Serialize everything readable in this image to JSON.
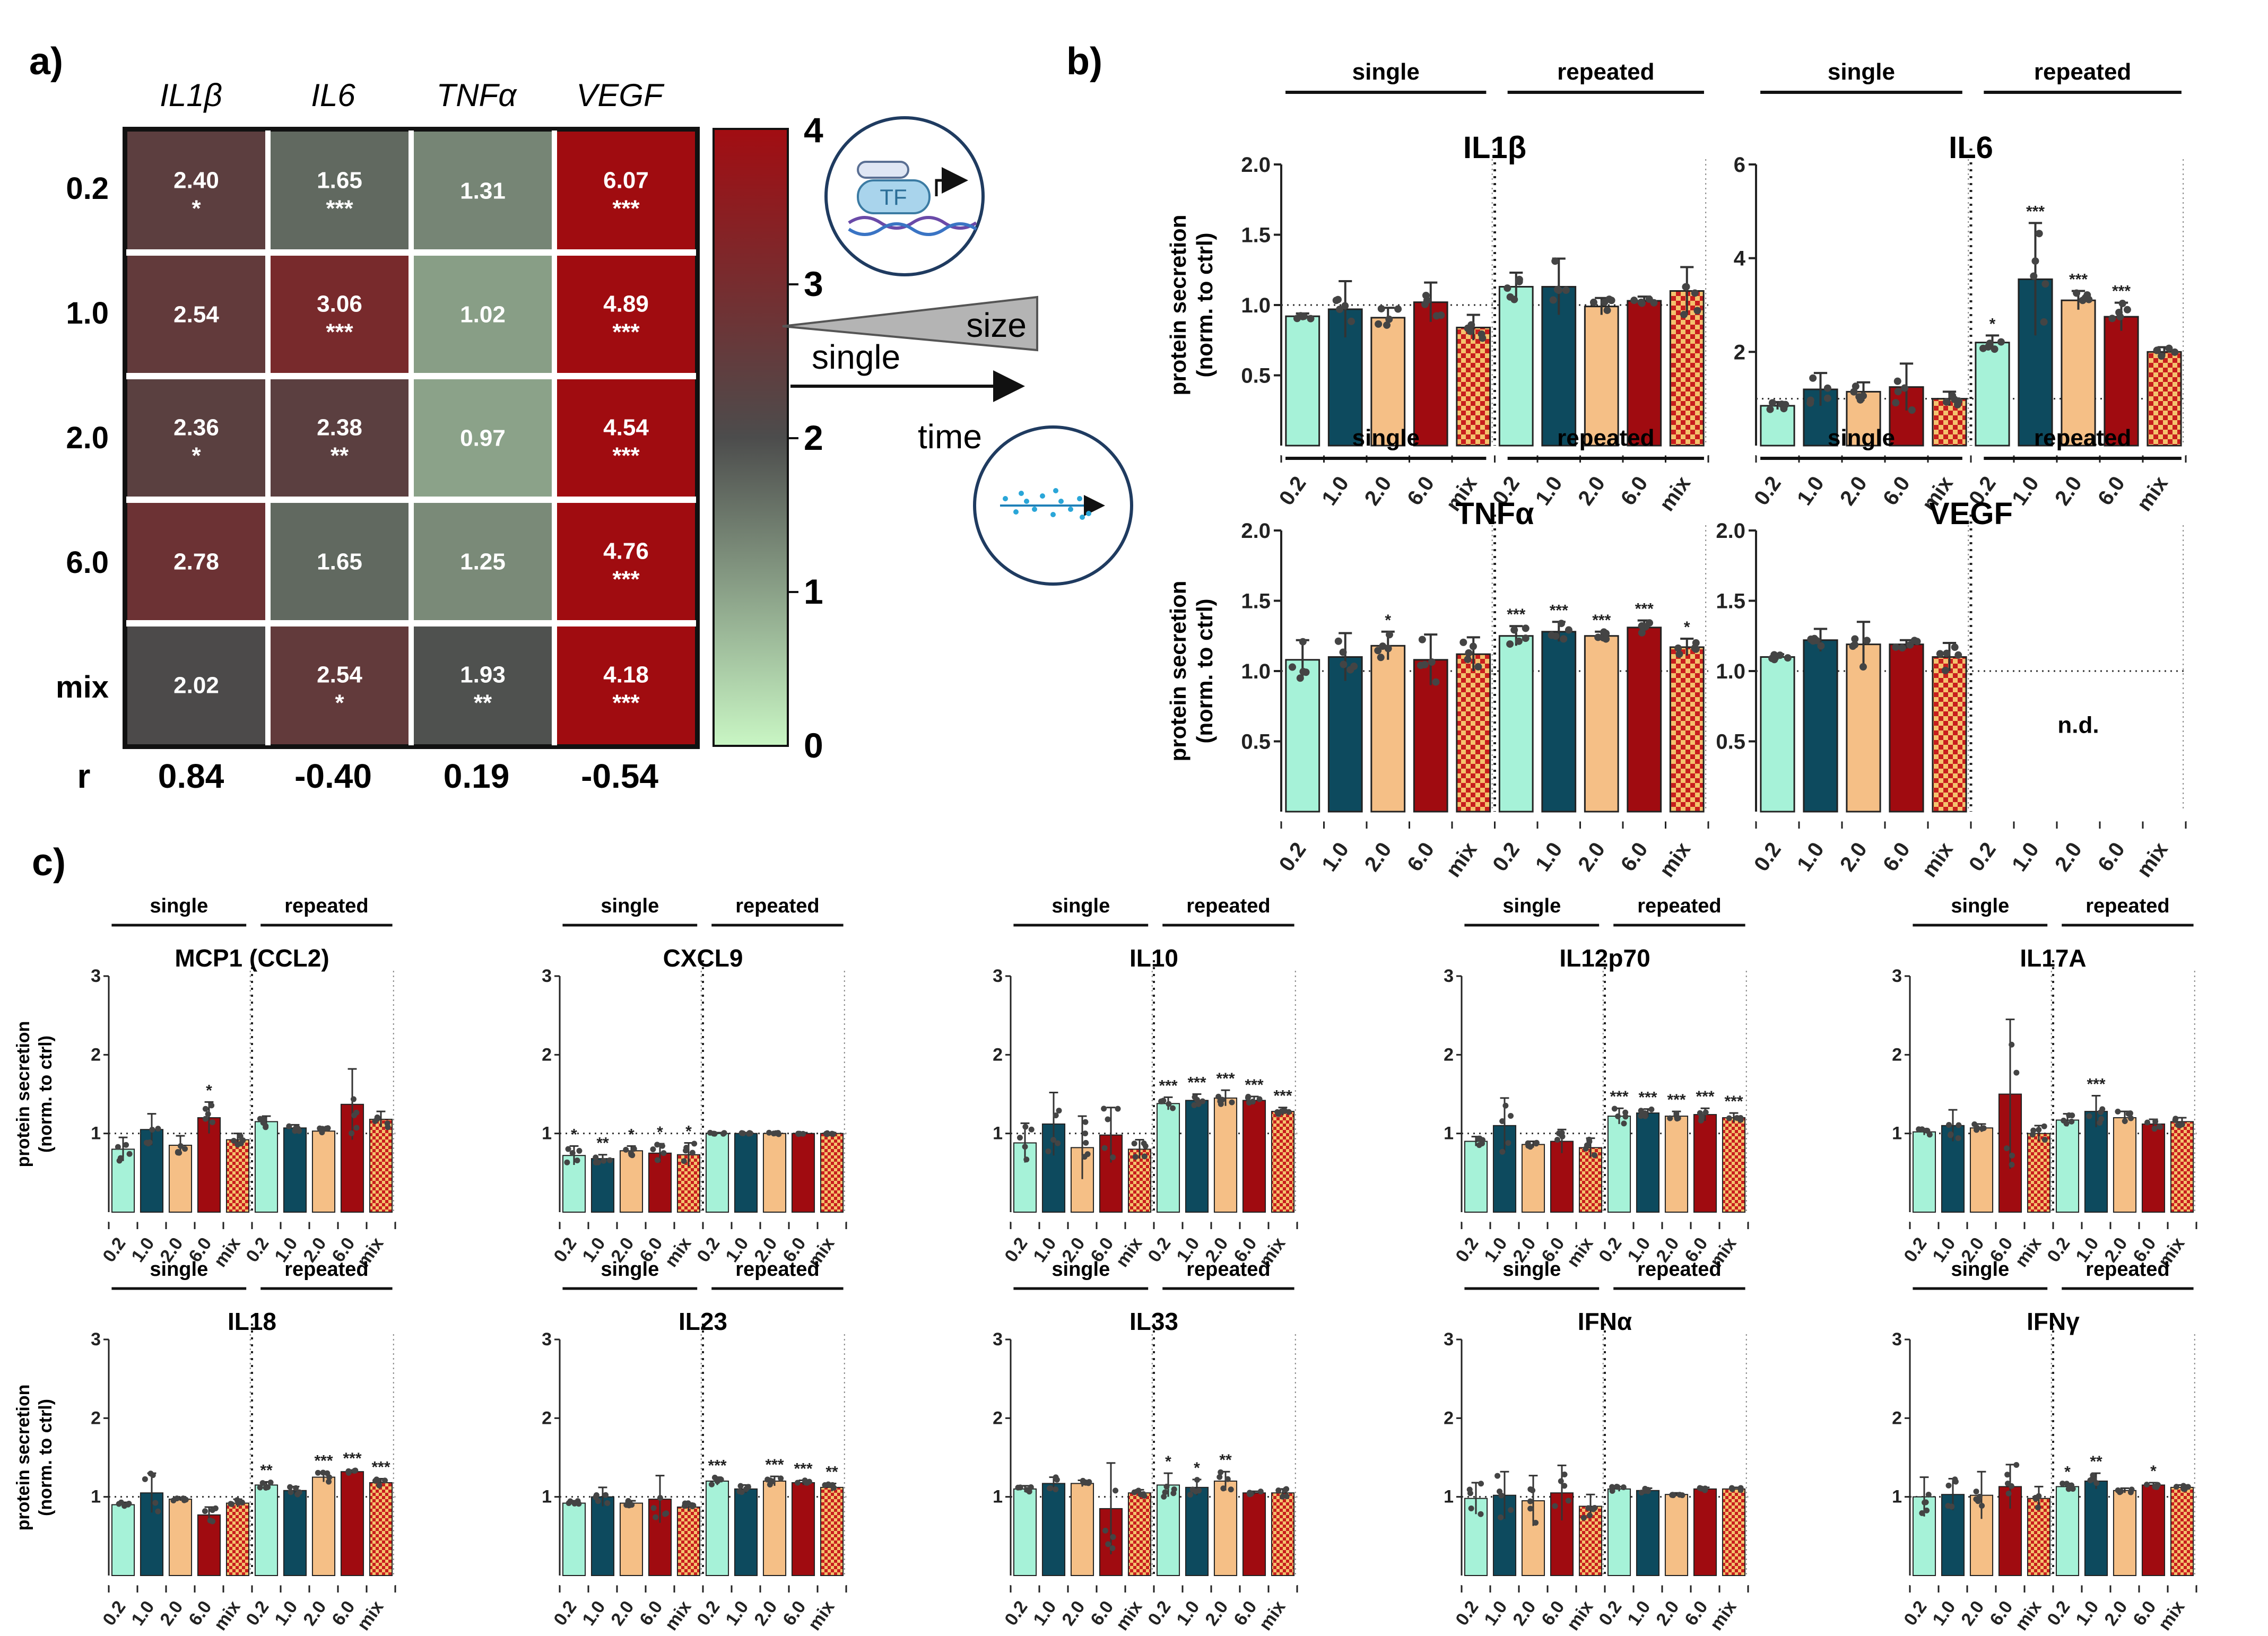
{
  "panels": {
    "a": "a)",
    "b": "b)",
    "c": "c)"
  },
  "colors": {
    "c0_2": "#a6f2d8",
    "c1_0": "#0d4a5e",
    "c2_0": "#f5bf86",
    "c6_0": "#a00b10",
    "cmix": "#cc2222",
    "cmix2": "#f4c06a",
    "hm_low": "#c8f4c4",
    "hm_mid": "#4b4b4b",
    "hm_high": "#a00c10"
  },
  "heatmap": {
    "columns": [
      "IL1β",
      "IL6",
      "TNFα",
      "VEGF"
    ],
    "rows": [
      "0.2",
      "1.0",
      "2.0",
      "6.0",
      "mix"
    ],
    "values": [
      [
        "2.40",
        "1.65",
        "1.31",
        "6.07"
      ],
      [
        "2.54",
        "3.06",
        "1.02",
        "4.89"
      ],
      [
        "2.36",
        "2.38",
        "0.97",
        "4.54"
      ],
      [
        "2.78",
        "1.65",
        "1.25",
        "4.76"
      ],
      [
        "2.02",
        "2.54",
        "1.93",
        "4.18"
      ]
    ],
    "numeric": [
      [
        2.4,
        1.65,
        1.31,
        6.07
      ],
      [
        2.54,
        3.06,
        1.02,
        4.89
      ],
      [
        2.36,
        2.38,
        0.97,
        4.54
      ],
      [
        2.78,
        1.65,
        1.25,
        4.76
      ],
      [
        2.02,
        2.54,
        1.93,
        4.18
      ]
    ],
    "stars": [
      [
        "*",
        "***",
        "",
        "***"
      ],
      [
        "",
        "***",
        "",
        "***"
      ],
      [
        "*",
        "**",
        "",
        "***"
      ],
      [
        "",
        "",
        "",
        "***"
      ],
      [
        "",
        "*",
        "**",
        "***"
      ]
    ],
    "r_label": "r",
    "r_values": [
      "0.84",
      "-0.40",
      "0.19",
      "-0.54"
    ],
    "colorbar_ticks": [
      "4",
      "3",
      "2",
      "1",
      "0"
    ]
  },
  "schematic": {
    "tf_label": "TF",
    "size_label": "size",
    "single_label": "single",
    "time_label": "time"
  },
  "chart_data": [
    {
      "type": "bar",
      "title": "IL1β",
      "ylabel": "protein secretion (norm. to ctrl)",
      "ylim": [
        0,
        2.0
      ],
      "yticks": [
        "0.5",
        "1.0",
        "1.5",
        "2.0"
      ],
      "groups": [
        "single",
        "repeated"
      ],
      "categories": [
        "0.2",
        "1.0",
        "2.0",
        "6.0",
        "mix",
        "0.2",
        "1.0",
        "2.0",
        "6.0",
        "mix"
      ],
      "values": [
        0.92,
        0.97,
        0.91,
        1.02,
        0.84,
        1.13,
        1.13,
        0.99,
        1.03,
        1.1
      ],
      "errors": [
        0.02,
        0.2,
        0.07,
        0.14,
        0.09,
        0.1,
        0.2,
        0.06,
        0.03,
        0.17
      ],
      "sig": [
        "",
        "",
        "",
        "",
        "",
        "",
        "",
        "",
        "",
        ""
      ],
      "note": ""
    },
    {
      "type": "bar",
      "title": "IL6",
      "ylabel": "",
      "ylim": [
        0,
        6
      ],
      "yticks": [
        "2",
        "4",
        "6"
      ],
      "groups": [
        "single",
        "repeated"
      ],
      "categories": [
        "0.2",
        "1.0",
        "2.0",
        "6.0",
        "mix",
        "0.2",
        "1.0",
        "2.0",
        "6.0",
        "mix"
      ],
      "values": [
        0.85,
        1.2,
        1.15,
        1.25,
        1.0,
        2.2,
        3.55,
        3.1,
        2.75,
        2.0
      ],
      "errors": [
        0.08,
        0.35,
        0.2,
        0.5,
        0.15,
        0.15,
        1.2,
        0.2,
        0.3,
        0.1
      ],
      "sig": [
        "",
        "",
        "",
        "",
        "",
        "*",
        "***",
        "***",
        "***",
        ""
      ],
      "note": ""
    },
    {
      "type": "bar",
      "title": "TNFα",
      "ylabel": "protein secretion (norm. to ctrl)",
      "ylim": [
        0,
        2.0
      ],
      "yticks": [
        "0.5",
        "1.0",
        "1.5",
        "2.0"
      ],
      "groups": [
        "single",
        "repeated"
      ],
      "categories": [
        "0.2",
        "1.0",
        "2.0",
        "6.0",
        "mix",
        "0.2",
        "1.0",
        "2.0",
        "6.0",
        "mix"
      ],
      "values": [
        1.08,
        1.1,
        1.18,
        1.08,
        1.12,
        1.25,
        1.28,
        1.25,
        1.31,
        1.17
      ],
      "errors": [
        0.14,
        0.17,
        0.1,
        0.18,
        0.12,
        0.07,
        0.07,
        0.03,
        0.05,
        0.06
      ],
      "sig": [
        "",
        "",
        "*",
        "",
        "",
        "***",
        "***",
        "***",
        "***",
        "*"
      ],
      "note": ""
    },
    {
      "type": "bar",
      "title": "VEGF",
      "ylabel": "",
      "ylim": [
        0,
        2.0
      ],
      "yticks": [
        "0.5",
        "1.0",
        "1.5",
        "2.0"
      ],
      "groups": [
        "single",
        "repeated"
      ],
      "categories": [
        "0.2",
        "1.0",
        "2.0",
        "6.0",
        "mix",
        "0.2",
        "1.0",
        "2.0",
        "6.0",
        "mix"
      ],
      "values": [
        1.1,
        1.22,
        1.19,
        1.19,
        1.1,
        null,
        null,
        null,
        null,
        null
      ],
      "errors": [
        0.02,
        0.08,
        0.16,
        0.03,
        0.1,
        null,
        null,
        null,
        null,
        null
      ],
      "sig": [
        "",
        "",
        "",
        "",
        "",
        "",
        "",
        "",
        "",
        ""
      ],
      "note": "n.d."
    },
    {
      "type": "bar",
      "title": "MCP1 (CCL2)",
      "ylabel": "protein secretion (norm. to ctrl)",
      "ylim": [
        0,
        3
      ],
      "yticks": [
        "1",
        "2",
        "3"
      ],
      "groups": [
        "single",
        "repeated"
      ],
      "categories": [
        "0.2",
        "1.0",
        "2.0",
        "6.0",
        "mix",
        "0.2",
        "1.0",
        "2.0",
        "6.0",
        "mix"
      ],
      "values": [
        0.8,
        1.05,
        0.85,
        1.2,
        0.92,
        1.15,
        1.07,
        1.03,
        1.37,
        1.18
      ],
      "errors": [
        0.15,
        0.2,
        0.12,
        0.2,
        0.08,
        0.07,
        0.04,
        0.04,
        0.45,
        0.1
      ],
      "sig": [
        "",
        "",
        "",
        "*",
        "",
        "",
        "",
        "",
        "",
        ""
      ],
      "note": ""
    },
    {
      "type": "bar",
      "title": "CXCL9",
      "ylabel": "",
      "ylim": [
        0,
        3
      ],
      "yticks": [
        "1",
        "2",
        "3"
      ],
      "groups": [
        "single",
        "repeated"
      ],
      "categories": [
        "0.2",
        "1.0",
        "2.0",
        "6.0",
        "mix",
        "0.2",
        "1.0",
        "2.0",
        "6.0",
        "mix"
      ],
      "values": [
        0.72,
        0.68,
        0.78,
        0.75,
        0.73,
        1.0,
        1.0,
        1.0,
        1.0,
        1.0
      ],
      "errors": [
        0.12,
        0.05,
        0.06,
        0.12,
        0.15,
        0.01,
        0.01,
        0.01,
        0.01,
        0.01
      ],
      "sig": [
        "*",
        "**",
        "*",
        "*",
        "*",
        "",
        "",
        "",
        "",
        ""
      ],
      "note": ""
    },
    {
      "type": "bar",
      "title": "IL10",
      "ylabel": "",
      "ylim": [
        0,
        3
      ],
      "yticks": [
        "1",
        "2",
        "3"
      ],
      "groups": [
        "single",
        "repeated"
      ],
      "categories": [
        "0.2",
        "1.0",
        "2.0",
        "6.0",
        "mix",
        "0.2",
        "1.0",
        "2.0",
        "6.0",
        "mix"
      ],
      "values": [
        0.88,
        1.12,
        0.82,
        0.98,
        0.8,
        1.38,
        1.42,
        1.45,
        1.42,
        1.28
      ],
      "errors": [
        0.25,
        0.4,
        0.4,
        0.35,
        0.12,
        0.08,
        0.08,
        0.1,
        0.05,
        0.05
      ],
      "sig": [
        "",
        "",
        "",
        "",
        "",
        "***",
        "***",
        "***",
        "***",
        "***"
      ],
      "note": ""
    },
    {
      "type": "bar",
      "title": "IL12p70",
      "ylabel": "",
      "ylim": [
        0,
        3
      ],
      "yticks": [
        "1",
        "2",
        "3"
      ],
      "groups": [
        "single",
        "repeated"
      ],
      "categories": [
        "0.2",
        "1.0",
        "2.0",
        "6.0",
        "mix",
        "0.2",
        "1.0",
        "2.0",
        "6.0",
        "mix"
      ],
      "values": [
        0.9,
        1.1,
        0.86,
        0.9,
        0.82,
        1.22,
        1.26,
        1.22,
        1.24,
        1.2
      ],
      "errors": [
        0.06,
        0.35,
        0.04,
        0.15,
        0.12,
        0.1,
        0.05,
        0.06,
        0.08,
        0.06
      ],
      "sig": [
        "",
        "",
        "",
        "",
        "",
        "***",
        "***",
        "***",
        "***",
        "***"
      ],
      "note": ""
    },
    {
      "type": "bar",
      "title": "IL17A",
      "ylabel": "",
      "ylim": [
        0,
        3
      ],
      "yticks": [
        "1",
        "2",
        "3"
      ],
      "groups": [
        "single",
        "repeated"
      ],
      "categories": [
        "0.2",
        "1.0",
        "2.0",
        "6.0",
        "mix",
        "0.2",
        "1.0",
        "2.0",
        "6.0",
        "mix"
      ],
      "values": [
        1.02,
        1.1,
        1.07,
        1.5,
        1.0,
        1.17,
        1.28,
        1.2,
        1.12,
        1.15
      ],
      "errors": [
        0.04,
        0.2,
        0.05,
        0.95,
        0.1,
        0.08,
        0.2,
        0.08,
        0.06,
        0.05
      ],
      "sig": [
        "",
        "",
        "",
        "",
        "",
        "",
        "***",
        "",
        "",
        ""
      ],
      "note": ""
    },
    {
      "type": "bar",
      "title": "IL18",
      "ylabel": "protein secretion (norm. to ctrl)",
      "ylim": [
        0,
        3
      ],
      "yticks": [
        "1",
        "2",
        "3"
      ],
      "groups": [
        "single",
        "repeated"
      ],
      "categories": [
        "0.2",
        "1.0",
        "2.0",
        "6.0",
        "mix",
        "0.2",
        "1.0",
        "2.0",
        "6.0",
        "mix"
      ],
      "values": [
        0.9,
        1.05,
        0.97,
        0.77,
        0.92,
        1.15,
        1.08,
        1.25,
        1.32,
        1.18
      ],
      "errors": [
        0.03,
        0.25,
        0.02,
        0.1,
        0.05,
        0.04,
        0.05,
        0.06,
        0.02,
        0.05
      ],
      "sig": [
        "",
        "",
        "",
        "",
        "",
        "**",
        "",
        "***",
        "***",
        "***"
      ],
      "note": ""
    },
    {
      "type": "bar",
      "title": "IL23",
      "ylabel": "",
      "ylim": [
        0,
        3
      ],
      "yticks": [
        "1",
        "2",
        "3"
      ],
      "groups": [
        "single",
        "repeated"
      ],
      "categories": [
        "0.2",
        "1.0",
        "2.0",
        "6.0",
        "mix",
        "0.2",
        "1.0",
        "2.0",
        "6.0",
        "mix"
      ],
      "values": [
        0.92,
        1.0,
        0.92,
        0.97,
        0.87,
        1.2,
        1.1,
        1.2,
        1.18,
        1.12
      ],
      "errors": [
        0.03,
        0.12,
        0.03,
        0.3,
        0.05,
        0.05,
        0.05,
        0.06,
        0.03,
        0.05
      ],
      "sig": [
        "",
        "",
        "",
        "",
        "",
        "***",
        "",
        "***",
        "***",
        "**"
      ],
      "note": ""
    },
    {
      "type": "bar",
      "title": "IL33",
      "ylabel": "",
      "ylim": [
        0,
        3
      ],
      "yticks": [
        "1",
        "2",
        "3"
      ],
      "groups": [
        "single",
        "repeated"
      ],
      "categories": [
        "0.2",
        "1.0",
        "2.0",
        "6.0",
        "mix",
        "0.2",
        "1.0",
        "2.0",
        "6.0",
        "mix"
      ],
      "values": [
        1.1,
        1.17,
        1.17,
        0.85,
        1.05,
        1.15,
        1.12,
        1.2,
        1.05,
        1.05
      ],
      "errors": [
        0.04,
        0.08,
        0.04,
        0.58,
        0.04,
        0.15,
        0.1,
        0.12,
        0.02,
        0.05
      ],
      "sig": [
        "",
        "",
        "",
        "",
        "",
        "*",
        "*",
        "**",
        "",
        ""
      ],
      "note": ""
    },
    {
      "type": "bar",
      "title": "IFNα",
      "ylabel": "",
      "ylim": [
        0,
        3
      ],
      "yticks": [
        "1",
        "2",
        "3"
      ],
      "groups": [
        "single",
        "repeated"
      ],
      "categories": [
        "0.2",
        "1.0",
        "2.0",
        "6.0",
        "mix",
        "0.2",
        "1.0",
        "2.0",
        "6.0",
        "mix"
      ],
      "values": [
        0.98,
        1.02,
        0.95,
        1.05,
        0.88,
        1.1,
        1.08,
        1.03,
        1.1,
        1.1
      ],
      "errors": [
        0.2,
        0.3,
        0.32,
        0.35,
        0.15,
        0.03,
        0.03,
        0.02,
        0.02,
        0.02
      ],
      "sig": [
        "",
        "",
        "",
        "",
        "",
        "",
        "",
        "",
        "",
        ""
      ],
      "note": ""
    },
    {
      "type": "bar",
      "title": "IFNγ",
      "ylabel": "",
      "ylim": [
        0,
        3
      ],
      "yticks": [
        "1",
        "2",
        "3"
      ],
      "groups": [
        "single",
        "repeated"
      ],
      "categories": [
        "0.2",
        "1.0",
        "2.0",
        "6.0",
        "mix",
        "0.2",
        "1.0",
        "2.0",
        "6.0",
        "mix"
      ],
      "values": [
        1.0,
        1.03,
        1.02,
        1.13,
        0.98,
        1.13,
        1.2,
        1.08,
        1.15,
        1.12
      ],
      "errors": [
        0.25,
        0.2,
        0.3,
        0.28,
        0.15,
        0.04,
        0.1,
        0.03,
        0.03,
        0.03
      ],
      "sig": [
        "",
        "",
        "",
        "",
        "",
        "*",
        "**",
        "",
        "*",
        ""
      ],
      "note": ""
    }
  ]
}
